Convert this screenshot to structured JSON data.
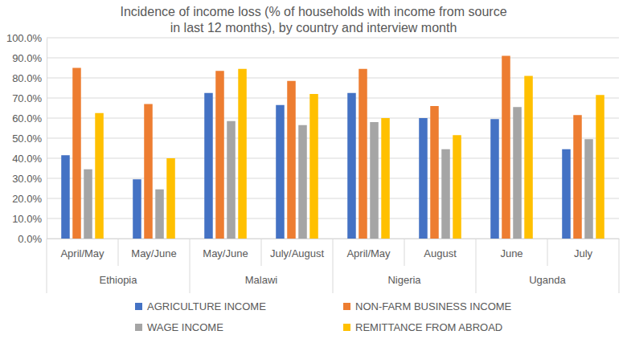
{
  "chart_data": {
    "type": "bar",
    "title": "Incidence of income loss (% of households with income from source\nin last 12 months), by country and interview month",
    "categories": [
      "April/May",
      "May/June",
      "May/June",
      "July/August",
      "April/May",
      "August",
      "June",
      "July"
    ],
    "groups": [
      "Ethiopia",
      "Ethiopia",
      "Malawi",
      "Malawi",
      "Nigeria",
      "Nigeria",
      "Uganda",
      "Uganda"
    ],
    "series": [
      {
        "name": "AGRICULTURE INCOME",
        "color": "#4472c4",
        "values": [
          41.5,
          29.5,
          72.5,
          66.5,
          72.5,
          60.0,
          59.5,
          44.5
        ]
      },
      {
        "name": "NON-FARM BUSINESS INCOME",
        "color": "#ed7d31",
        "values": [
          85.0,
          67.0,
          83.5,
          78.5,
          84.5,
          66.0,
          91.0,
          61.5
        ]
      },
      {
        "name": "WAGE INCOME",
        "color": "#a5a5a5",
        "values": [
          34.5,
          24.5,
          58.5,
          56.5,
          58.0,
          44.5,
          65.5,
          49.5
        ]
      },
      {
        "name": "REMITTANCE FROM ABROAD",
        "color": "#ffc000",
        "values": [
          62.5,
          40.0,
          84.5,
          72.0,
          60.0,
          51.5,
          81.0,
          71.5
        ]
      }
    ],
    "ylim": [
      0,
      100
    ],
    "yticks": [
      {
        "value": 0,
        "label": "0.0%"
      },
      {
        "value": 10,
        "label": "10.0%"
      },
      {
        "value": 20,
        "label": "20.0%"
      },
      {
        "value": 30,
        "label": "30.0%"
      },
      {
        "value": 40,
        "label": "40.0%"
      },
      {
        "value": 50,
        "label": "50.0%"
      },
      {
        "value": 60,
        "label": "60.0%"
      },
      {
        "value": 70,
        "label": "70.0%"
      },
      {
        "value": 80,
        "label": "80.0%"
      },
      {
        "value": 90,
        "label": "90.0%"
      },
      {
        "value": 100,
        "label": "100.0%"
      }
    ],
    "grid": true,
    "legend": "bottom"
  }
}
